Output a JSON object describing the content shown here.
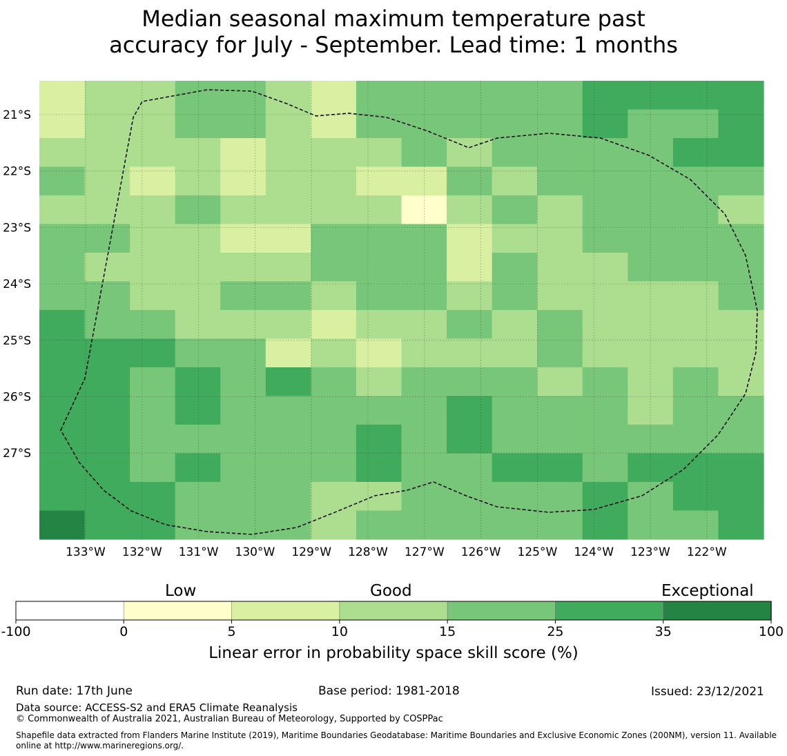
{
  "title": {
    "line1": "Median seasonal maximum temperature past",
    "line2": "accuracy for July - September. Lead time: 1 months"
  },
  "map": {
    "lat_labels": [
      "21°S",
      "22°S",
      "23°S",
      "24°S",
      "25°S",
      "26°S",
      "27°S"
    ],
    "lon_labels": [
      "133°W",
      "132°W",
      "131°W",
      "130°W",
      "129°W",
      "128°W",
      "127°W",
      "126°W",
      "125°W",
      "124°W",
      "123°W",
      "122°W"
    ],
    "grid": [
      [
        2,
        3,
        3,
        4,
        4,
        3,
        2,
        4,
        4,
        4,
        4,
        4,
        5,
        5,
        5,
        5
      ],
      [
        2,
        3,
        3,
        4,
        4,
        3,
        2,
        4,
        4,
        4,
        4,
        4,
        5,
        4,
        4,
        5
      ],
      [
        3,
        3,
        3,
        3,
        2,
        3,
        3,
        3,
        4,
        3,
        4,
        4,
        4,
        4,
        5,
        5
      ],
      [
        4,
        3,
        2,
        3,
        2,
        3,
        3,
        2,
        2,
        4,
        3,
        4,
        4,
        4,
        4,
        4
      ],
      [
        3,
        3,
        3,
        4,
        3,
        3,
        3,
        3,
        1,
        3,
        4,
        3,
        4,
        4,
        4,
        3
      ],
      [
        4,
        4,
        3,
        3,
        2,
        2,
        4,
        4,
        4,
        2,
        3,
        3,
        4,
        4,
        4,
        4
      ],
      [
        4,
        3,
        3,
        3,
        3,
        3,
        4,
        4,
        4,
        2,
        4,
        3,
        3,
        4,
        4,
        4
      ],
      [
        4,
        4,
        3,
        3,
        4,
        4,
        3,
        4,
        4,
        3,
        4,
        3,
        3,
        3,
        3,
        4
      ],
      [
        5,
        4,
        4,
        3,
        3,
        3,
        2,
        3,
        3,
        4,
        3,
        4,
        3,
        3,
        3,
        3
      ],
      [
        5,
        5,
        5,
        4,
        4,
        2,
        3,
        2,
        3,
        3,
        3,
        4,
        3,
        3,
        3,
        3
      ],
      [
        5,
        5,
        4,
        5,
        4,
        5,
        4,
        3,
        4,
        4,
        4,
        3,
        4,
        3,
        4,
        3
      ],
      [
        5,
        5,
        4,
        5,
        4,
        4,
        4,
        4,
        4,
        5,
        4,
        4,
        4,
        3,
        4,
        4
      ],
      [
        5,
        5,
        4,
        4,
        4,
        4,
        4,
        5,
        4,
        5,
        4,
        4,
        4,
        4,
        4,
        4
      ],
      [
        5,
        5,
        4,
        5,
        4,
        4,
        4,
        5,
        4,
        4,
        5,
        5,
        4,
        5,
        5,
        5
      ],
      [
        5,
        5,
        5,
        4,
        4,
        4,
        3,
        3,
        4,
        4,
        4,
        4,
        5,
        4,
        5,
        5
      ],
      [
        6,
        5,
        5,
        4,
        4,
        4,
        3,
        4,
        4,
        4,
        4,
        4,
        5,
        4,
        4,
        5
      ]
    ]
  },
  "colorbar": {
    "colors": [
      "#ffffff",
      "#ffffcc",
      "#d9f0a3",
      "#addd8e",
      "#78c679",
      "#41ab5d",
      "#238443"
    ],
    "ticks": [
      "-100",
      "0",
      "5",
      "10",
      "15",
      "25",
      "35",
      "100"
    ],
    "categories": {
      "low": "Low",
      "good": "Good",
      "exceptional": "Exceptional"
    },
    "label": "Linear error in probability space skill score (%)"
  },
  "footer": {
    "run_date": "Run date: 17th June",
    "base_period": "Base period: 1981-2018",
    "issued": "Issued: 23/12/2021",
    "data_source": "Data source: ACCESS-S2 and ERA5 Climate Reanalysis",
    "copyright": "© Commonwealth of Australia 2021, Australian Bureau of Meteorology, Supported by COSPPac",
    "shapefile_line1": "Shapefile data extracted from Flanders Marine Institute (2019), Maritime Boundaries Geodatabase: Maritime Boundaries and Exclusive Economic Zones (200NM), version 11. Available",
    "shapefile_line2": "online at http://www.marineregions.org/."
  }
}
